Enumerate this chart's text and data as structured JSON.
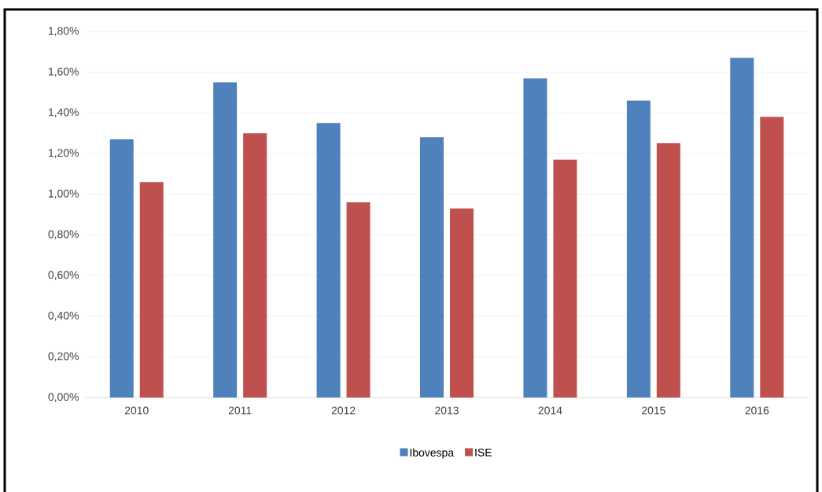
{
  "chart_data": {
    "type": "bar",
    "categories": [
      "2010",
      "2011",
      "2012",
      "2013",
      "2014",
      "2015",
      "2016"
    ],
    "series": [
      {
        "name": "Ibovespa",
        "color": "#4f81bd",
        "values": [
          1.27,
          1.55,
          1.35,
          1.28,
          1.57,
          1.46,
          1.67
        ]
      },
      {
        "name": "ISE",
        "color": "#c0504d",
        "values": [
          1.06,
          1.3,
          0.96,
          0.93,
          1.17,
          1.25,
          1.38
        ]
      }
    ],
    "ylim": [
      0,
      1.8
    ],
    "yticks": [
      {
        "value": 0,
        "label": "0,00%"
      },
      {
        "value": 0.2,
        "label": "0,20%"
      },
      {
        "value": 0.4,
        "label": "0,40%"
      },
      {
        "value": 0.6,
        "label": "0,60%"
      },
      {
        "value": 0.8,
        "label": "0,80%"
      },
      {
        "value": 1.0,
        "label": "1,00%"
      },
      {
        "value": 1.2,
        "label": "1,20%"
      },
      {
        "value": 1.4,
        "label": "1,40%"
      },
      {
        "value": 1.6,
        "label": "1,60%"
      },
      {
        "value": 1.8,
        "label": "1,80%"
      }
    ],
    "grid": "y",
    "legend": "bottom"
  }
}
